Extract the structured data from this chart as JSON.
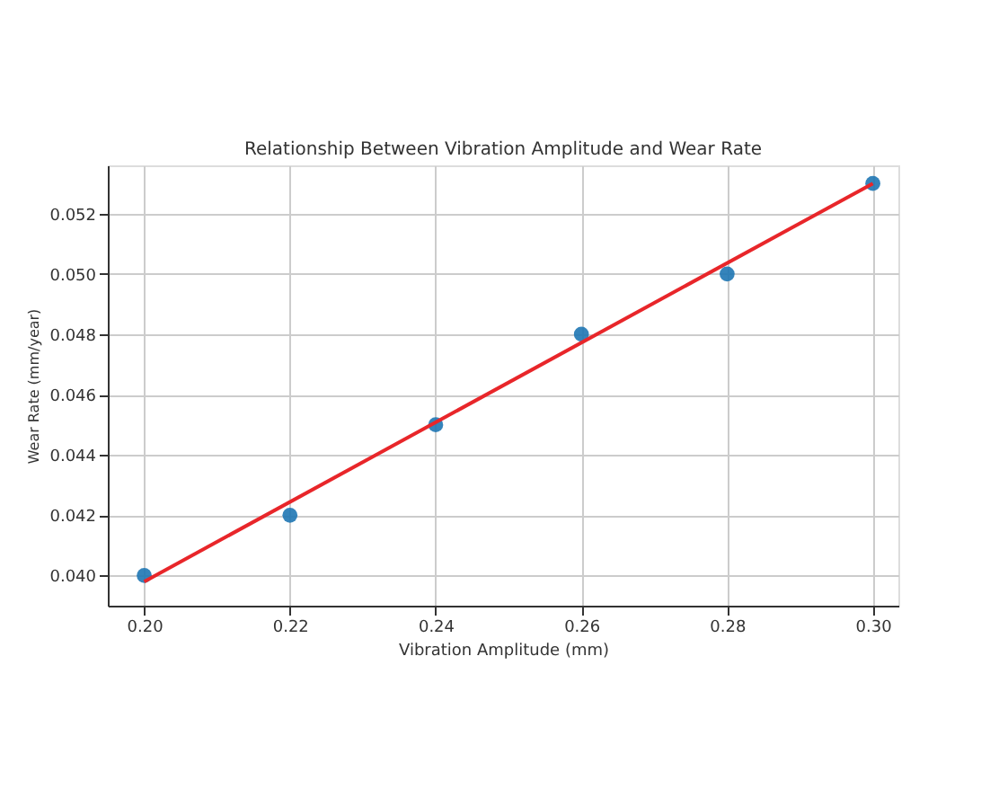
{
  "chart_data": {
    "type": "scatter",
    "title": "Relationship Between Vibration Amplitude and Wear Rate",
    "xlabel": "Vibration Amplitude (mm)",
    "ylabel": "Wear Rate (mm/year)",
    "xlim": [
      0.195,
      0.3035
    ],
    "ylim": [
      0.039,
      0.0536
    ],
    "xticks": [
      {
        "value": 0.2,
        "label": "0.20"
      },
      {
        "value": 0.22,
        "label": "0.22"
      },
      {
        "value": 0.24,
        "label": "0.24"
      },
      {
        "value": 0.26,
        "label": "0.26"
      },
      {
        "value": 0.28,
        "label": "0.28"
      },
      {
        "value": 0.3,
        "label": "0.30"
      }
    ],
    "yticks": [
      {
        "value": 0.04,
        "label": "0.040"
      },
      {
        "value": 0.042,
        "label": "0.042"
      },
      {
        "value": 0.044,
        "label": "0.044"
      },
      {
        "value": 0.046,
        "label": "0.046"
      },
      {
        "value": 0.048,
        "label": "0.048"
      },
      {
        "value": 0.05,
        "label": "0.050"
      },
      {
        "value": 0.052,
        "label": "0.052"
      }
    ],
    "grid": true,
    "marker": "circle",
    "series": [
      {
        "color": "#1f77b4",
        "x": [
          0.2,
          0.22,
          0.24,
          0.26,
          0.28,
          0.3
        ],
        "values": [
          0.04,
          0.042,
          0.045,
          0.048,
          0.05,
          0.053
        ]
      },
      {
        "type": "line",
        "color": "#e8262a",
        "x": [
          0.2,
          0.3
        ],
        "values": [
          0.0398,
          0.053
        ],
        "line_style": "solid",
        "marker": "none"
      }
    ]
  }
}
